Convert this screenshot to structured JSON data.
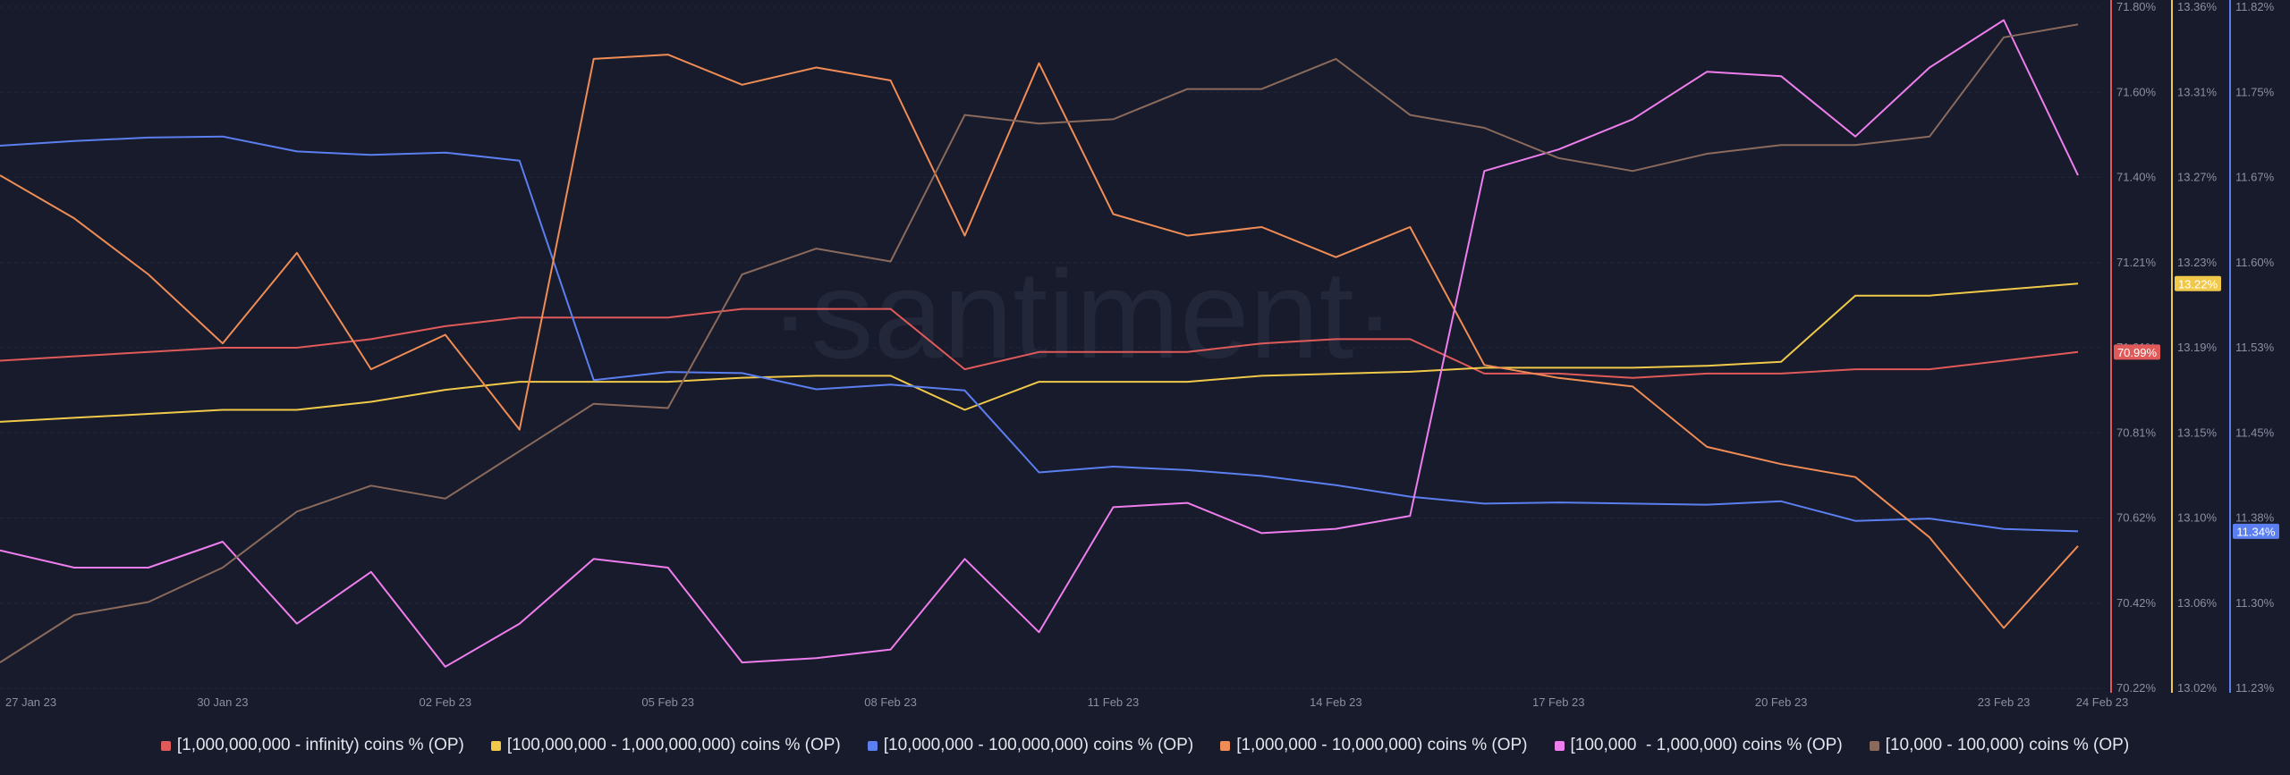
{
  "watermark": "·santiment·",
  "chart_data": {
    "type": "line",
    "x": [
      "27 Jan 23",
      "28 Jan 23",
      "29 Jan 23",
      "30 Jan 23",
      "31 Jan 23",
      "01 Feb 23",
      "02 Feb 23",
      "03 Feb 23",
      "04 Feb 23",
      "05 Feb 23",
      "06 Feb 23",
      "07 Feb 23",
      "08 Feb 23",
      "09 Feb 23",
      "10 Feb 23",
      "11 Feb 23",
      "12 Feb 23",
      "13 Feb 23",
      "14 Feb 23",
      "15 Feb 23",
      "16 Feb 23",
      "17 Feb 23",
      "18 Feb 23",
      "19 Feb 23",
      "20 Feb 23",
      "21 Feb 23",
      "22 Feb 23",
      "23 Feb 23",
      "24 Feb 23"
    ],
    "x_tick_labels": [
      "27 Jan 23",
      "30 Jan 23",
      "02 Feb 23",
      "05 Feb 23",
      "08 Feb 23",
      "11 Feb 23",
      "14 Feb 23",
      "17 Feb 23",
      "20 Feb 23",
      "23 Feb 23",
      "24 Feb 23"
    ],
    "axes": [
      {
        "id": "red",
        "color": "#e05a5a",
        "ylim": [
          70.22,
          71.8
        ],
        "ticks": [
          "71.80%",
          "71.60%",
          "71.40%",
          "71.21%",
          "71.01%",
          "70.81%",
          "70.62%",
          "70.42%",
          "70.22%"
        ],
        "badge": "70.99%"
      },
      {
        "id": "yellow",
        "color": "#f0c94a",
        "ylim": [
          13.02,
          13.36
        ],
        "ticks": [
          "13.36%",
          "13.31%",
          "13.27%",
          "13.23%",
          "13.19%",
          "13.15%",
          "13.10%",
          "13.06%",
          "13.02%"
        ],
        "badge": "13.22%"
      },
      {
        "id": "blue",
        "color": "#5b7ff0",
        "ylim": [
          11.23,
          11.82
        ],
        "ticks": [
          "11.82%",
          "11.75%",
          "11.67%",
          "11.60%",
          "11.53%",
          "11.45%",
          "11.38%",
          "11.30%",
          "11.23%"
        ],
        "badge": "11.34%"
      }
    ],
    "series": [
      {
        "name": "[1,000,000,000 - infinity) coins % (OP)",
        "color": "#e05a5a",
        "axis": "red",
        "values": [
          70.98,
          70.99,
          71.0,
          71.01,
          71.01,
          71.03,
          71.06,
          71.08,
          71.08,
          71.08,
          71.1,
          71.1,
          71.1,
          70.96,
          71.0,
          71.0,
          71.0,
          71.02,
          71.03,
          71.03,
          70.95,
          70.95,
          70.94,
          70.95,
          70.95,
          70.96,
          70.96,
          70.98,
          71.0
        ]
      },
      {
        "name": "[100,000,000 - 1,000,000,000) coins % (OP)",
        "color": "#f0c94a",
        "axis": "yellow",
        "values": [
          13.153,
          13.155,
          13.157,
          13.159,
          13.159,
          13.163,
          13.169,
          13.173,
          13.173,
          13.173,
          13.175,
          13.176,
          13.176,
          13.159,
          13.173,
          13.173,
          13.173,
          13.176,
          13.177,
          13.178,
          13.18,
          13.18,
          13.18,
          13.181,
          13.183,
          13.216,
          13.216,
          13.219,
          13.222
        ]
      },
      {
        "name": "[10,000,000 - 100,000,000) coins % (OP)",
        "color": "#5b7ff0",
        "axis": "blue",
        "values": [
          11.7,
          11.704,
          11.707,
          11.708,
          11.695,
          11.692,
          11.694,
          11.687,
          11.497,
          11.504,
          11.503,
          11.489,
          11.493,
          11.488,
          11.417,
          11.422,
          11.419,
          11.414,
          11.406,
          11.396,
          11.39,
          11.391,
          11.39,
          11.389,
          11.392,
          11.375,
          11.377,
          11.368,
          11.366
        ]
      },
      {
        "name": "[1,000,000 - 10,000,000) coins % (OP)",
        "color": "#f08c55",
        "axis": "red",
        "values": [
          71.41,
          71.31,
          71.18,
          71.02,
          71.23,
          70.96,
          71.04,
          70.82,
          71.68,
          71.69,
          71.62,
          71.66,
          71.63,
          71.27,
          71.67,
          71.32,
          71.27,
          71.29,
          71.22,
          71.29,
          70.97,
          70.94,
          70.92,
          70.78,
          70.74,
          70.71,
          70.57,
          70.36,
          70.55
        ]
      },
      {
        "name": "[100,000  - 1,000,000) coins % (OP)",
        "color": "#ee7ded",
        "axis": "red",
        "values": [
          70.54,
          70.5,
          70.5,
          70.56,
          70.37,
          70.49,
          70.27,
          70.37,
          70.52,
          70.5,
          70.28,
          70.29,
          70.31,
          70.52,
          70.35,
          70.64,
          70.65,
          70.58,
          70.59,
          70.62,
          71.42,
          71.47,
          71.54,
          71.65,
          71.64,
          71.5,
          71.66,
          71.77,
          71.41
        ]
      },
      {
        "name": "[10,000 - 100,000) coins % (OP)",
        "color": "#8a6a5c",
        "axis": "red",
        "values": [
          70.28,
          70.39,
          70.42,
          70.5,
          70.63,
          70.69,
          70.66,
          70.77,
          70.88,
          70.87,
          71.18,
          71.24,
          71.21,
          71.55,
          71.53,
          71.54,
          71.61,
          71.61,
          71.68,
          71.55,
          71.52,
          71.45,
          71.42,
          71.46,
          71.48,
          71.48,
          71.5,
          71.73,
          71.76
        ]
      }
    ]
  }
}
